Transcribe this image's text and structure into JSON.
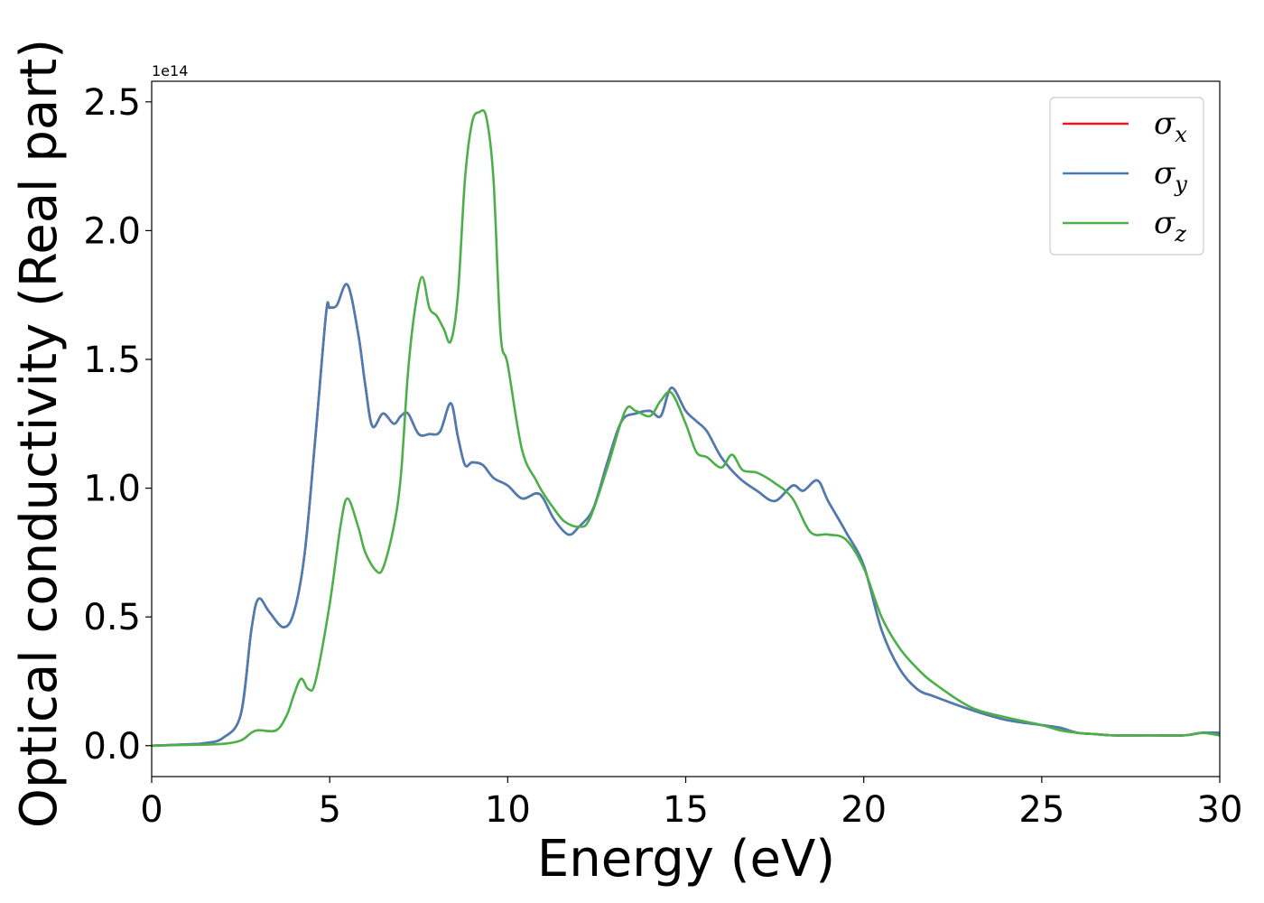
{
  "chart_data": {
    "type": "line",
    "xlabel": "Energy (eV)",
    "ylabel": "Optical conductivity (Real part)",
    "y_offset_label": "1e14",
    "xlim": [
      0,
      30
    ],
    "ylim": [
      -0.12,
      2.58
    ],
    "xticks": [
      0,
      5,
      10,
      15,
      20,
      25,
      30
    ],
    "xtick_labels": [
      "0",
      "5",
      "10",
      "15",
      "20",
      "25",
      "30"
    ],
    "yticks": [
      0.0,
      0.5,
      1.0,
      1.5,
      2.0,
      2.5
    ],
    "ytick_labels": [
      "0.0",
      "0.5",
      "1.0",
      "1.5",
      "2.0",
      "2.5"
    ],
    "legend_position": "top-right",
    "grid": false,
    "series": [
      {
        "name": "σx",
        "legend_base": "σ",
        "legend_sub": "x",
        "color": "#e41a1c",
        "x": [
          0,
          1,
          1.5,
          2,
          2.5,
          2.8,
          3.0,
          3.3,
          3.7,
          4.0,
          4.3,
          4.6,
          4.9,
          5.0,
          5.2,
          5.5,
          5.8,
          6.0,
          6.2,
          6.5,
          6.8,
          7.0,
          7.2,
          7.5,
          7.8,
          8.1,
          8.4,
          8.6,
          8.8,
          9.0,
          9.3,
          9.6,
          10.0,
          10.4,
          10.8,
          11.0,
          11.3,
          11.7,
          12.0,
          12.4,
          12.8,
          13.2,
          13.6,
          14.0,
          14.3,
          14.6,
          15.0,
          15.3,
          15.6,
          16.0,
          16.5,
          17.0,
          17.5,
          18.0,
          18.3,
          18.7,
          19.0,
          19.5,
          20.0,
          20.5,
          21.0,
          21.5,
          22.0,
          23.0,
          24.0,
          25.0,
          25.5,
          26.0,
          26.5,
          27.0,
          28.0,
          29.0,
          29.5,
          30.0
        ],
        "y": [
          0,
          0.005,
          0.01,
          0.03,
          0.12,
          0.45,
          0.57,
          0.52,
          0.46,
          0.52,
          0.75,
          1.2,
          1.68,
          1.7,
          1.71,
          1.79,
          1.6,
          1.4,
          1.24,
          1.29,
          1.25,
          1.28,
          1.29,
          1.21,
          1.21,
          1.22,
          1.33,
          1.2,
          1.09,
          1.1,
          1.09,
          1.04,
          1.01,
          0.96,
          0.98,
          0.96,
          0.88,
          0.82,
          0.85,
          0.92,
          1.1,
          1.26,
          1.29,
          1.3,
          1.28,
          1.39,
          1.3,
          1.26,
          1.22,
          1.12,
          1.04,
          0.99,
          0.95,
          1.01,
          0.99,
          1.03,
          0.95,
          0.83,
          0.7,
          0.45,
          0.3,
          0.22,
          0.19,
          0.14,
          0.1,
          0.08,
          0.07,
          0.05,
          0.045,
          0.04,
          0.04,
          0.04,
          0.05,
          0.05
        ]
      },
      {
        "name": "σy",
        "legend_base": "σ",
        "legend_sub": "y",
        "color": "#4a7db3",
        "x": [
          0,
          1,
          1.5,
          2,
          2.5,
          2.8,
          3.0,
          3.3,
          3.7,
          4.0,
          4.3,
          4.6,
          4.9,
          5.0,
          5.2,
          5.5,
          5.8,
          6.0,
          6.2,
          6.5,
          6.8,
          7.0,
          7.2,
          7.5,
          7.8,
          8.1,
          8.4,
          8.6,
          8.8,
          9.0,
          9.3,
          9.6,
          10.0,
          10.4,
          10.8,
          11.0,
          11.3,
          11.7,
          12.0,
          12.4,
          12.8,
          13.2,
          13.6,
          14.0,
          14.3,
          14.6,
          15.0,
          15.3,
          15.6,
          16.0,
          16.5,
          17.0,
          17.5,
          18.0,
          18.3,
          18.7,
          19.0,
          19.5,
          20.0,
          20.5,
          21.0,
          21.5,
          22.0,
          23.0,
          24.0,
          25.0,
          25.5,
          26.0,
          26.5,
          27.0,
          28.0,
          29.0,
          29.5,
          30.0
        ],
        "y": [
          0,
          0.005,
          0.01,
          0.03,
          0.12,
          0.45,
          0.57,
          0.52,
          0.46,
          0.52,
          0.75,
          1.2,
          1.68,
          1.7,
          1.71,
          1.79,
          1.6,
          1.4,
          1.24,
          1.29,
          1.25,
          1.28,
          1.29,
          1.21,
          1.21,
          1.22,
          1.33,
          1.2,
          1.09,
          1.1,
          1.09,
          1.04,
          1.01,
          0.96,
          0.98,
          0.96,
          0.88,
          0.82,
          0.85,
          0.92,
          1.1,
          1.26,
          1.29,
          1.3,
          1.28,
          1.39,
          1.3,
          1.26,
          1.22,
          1.12,
          1.04,
          0.99,
          0.95,
          1.01,
          0.99,
          1.03,
          0.95,
          0.83,
          0.7,
          0.45,
          0.3,
          0.22,
          0.19,
          0.14,
          0.1,
          0.08,
          0.07,
          0.05,
          0.045,
          0.04,
          0.04,
          0.04,
          0.05,
          0.05
        ]
      },
      {
        "name": "σz",
        "legend_base": "σ",
        "legend_sub": "z",
        "color": "#4daf4a",
        "x": [
          0,
          1,
          2,
          2.5,
          2.8,
          3.0,
          3.5,
          3.8,
          4.0,
          4.2,
          4.4,
          4.6,
          5.0,
          5.3,
          5.5,
          5.8,
          6.0,
          6.3,
          6.5,
          6.8,
          7.0,
          7.2,
          7.4,
          7.6,
          7.8,
          8.0,
          8.2,
          8.4,
          8.6,
          8.8,
          9.0,
          9.2,
          9.4,
          9.6,
          9.8,
          10.0,
          10.4,
          10.8,
          11.0,
          11.3,
          11.6,
          12.0,
          12.3,
          12.8,
          13.3,
          13.6,
          14.0,
          14.3,
          14.6,
          15.0,
          15.3,
          15.6,
          16.0,
          16.3,
          16.6,
          17.0,
          17.5,
          18.0,
          18.5,
          19.0,
          19.5,
          20.0,
          20.5,
          21.0,
          21.5,
          22.0,
          23.0,
          24.0,
          25.0,
          25.5,
          26.0,
          26.5,
          27.0,
          28.0,
          29.0,
          29.5,
          30.0
        ],
        "y": [
          0,
          0.003,
          0.007,
          0.02,
          0.05,
          0.06,
          0.06,
          0.12,
          0.2,
          0.26,
          0.22,
          0.25,
          0.55,
          0.85,
          0.96,
          0.85,
          0.75,
          0.68,
          0.69,
          0.85,
          1.05,
          1.45,
          1.7,
          1.82,
          1.7,
          1.67,
          1.62,
          1.57,
          1.75,
          2.2,
          2.42,
          2.46,
          2.44,
          2.2,
          1.6,
          1.48,
          1.15,
          1.03,
          0.98,
          0.92,
          0.87,
          0.85,
          0.88,
          1.08,
          1.3,
          1.3,
          1.28,
          1.34,
          1.37,
          1.25,
          1.14,
          1.12,
          1.08,
          1.13,
          1.07,
          1.06,
          1.02,
          0.96,
          0.83,
          0.82,
          0.8,
          0.69,
          0.5,
          0.38,
          0.3,
          0.24,
          0.15,
          0.11,
          0.08,
          0.06,
          0.05,
          0.045,
          0.04,
          0.04,
          0.04,
          0.05,
          0.04
        ]
      }
    ]
  }
}
